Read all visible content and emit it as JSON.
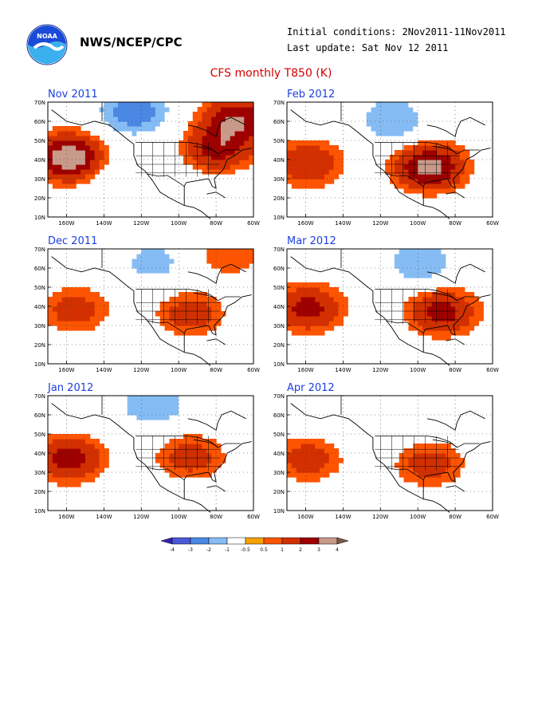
{
  "header": {
    "org": "NWS/NCEP/CPC",
    "initial_conditions": "Initial conditions: 2Nov2011-11Nov2011",
    "last_update": "Last update: Sat Nov 12 2011",
    "logo_text": "NOAA",
    "logo_icon": "noaa-logo-icon"
  },
  "title": "CFS monthly T850 (K)",
  "axes": {
    "lat_ticks": [
      "70N",
      "60N",
      "50N",
      "40N",
      "30N",
      "20N",
      "10N"
    ],
    "lon_ticks": [
      "160W",
      "140W",
      "120W",
      "100W",
      "80W",
      "60W"
    ],
    "lon_range": [
      -170,
      -60
    ],
    "lat_range": [
      10,
      70
    ]
  },
  "panels": [
    {
      "title": "Nov 2011"
    },
    {
      "title": "Feb 2012"
    },
    {
      "title": "Dec 2011"
    },
    {
      "title": "Mar 2012"
    },
    {
      "title": "Jan 2012"
    },
    {
      "title": "Apr 2012"
    }
  ],
  "colorbar": {
    "labels": [
      "-4",
      "-3",
      "-2",
      "-1",
      "-0.5",
      "0.5",
      "1",
      "2",
      "3",
      "4"
    ],
    "colors": [
      "#3a22b4",
      "#4a58d8",
      "#4a88e4",
      "#86bcf4",
      "#ffffff",
      "#f4a200",
      "#fc5400",
      "#d23000",
      "#9e0000",
      "#c89a8a",
      "#7a5a48"
    ]
  },
  "chart_data": {
    "type": "heatmap",
    "variable": "CFS monthly T850 (K)",
    "panels": [
      {
        "month": "Nov 2011",
        "anomalies": [
          {
            "lon": -160,
            "lat": 40,
            "value": 4
          },
          {
            "lon": -130,
            "lat": 30,
            "value": -1
          },
          {
            "lon": -125,
            "lat": 64,
            "value": -3
          },
          {
            "lon": -80,
            "lat": 45,
            "value": 2.5
          },
          {
            "lon": -70,
            "lat": 60,
            "value": 3
          }
        ]
      },
      {
        "month": "Feb 2012",
        "anomalies": [
          {
            "lon": -160,
            "lat": 37,
            "value": 2
          },
          {
            "lon": -95,
            "lat": 35,
            "value": 3.5
          },
          {
            "lon": -115,
            "lat": 60,
            "value": -2
          }
        ]
      },
      {
        "month": "Dec 2011",
        "anomalies": [
          {
            "lon": -157,
            "lat": 37,
            "value": 1.5
          },
          {
            "lon": -95,
            "lat": 35,
            "value": 1.5
          },
          {
            "lon": -115,
            "lat": 62,
            "value": -1.5
          },
          {
            "lon": -75,
            "lat": 66,
            "value": 1
          }
        ]
      },
      {
        "month": "Mar 2012",
        "anomalies": [
          {
            "lon": -160,
            "lat": 38,
            "value": 2.5
          },
          {
            "lon": -88,
            "lat": 36,
            "value": 2.5
          },
          {
            "lon": -100,
            "lat": 62,
            "value": -2
          }
        ]
      },
      {
        "month": "Jan 2012",
        "anomalies": [
          {
            "lon": -160,
            "lat": 36,
            "value": 2.5
          },
          {
            "lon": -95,
            "lat": 37,
            "value": 1.5
          },
          {
            "lon": -115,
            "lat": 64,
            "value": -2
          }
        ]
      },
      {
        "month": "Apr 2012",
        "anomalies": [
          {
            "lon": -160,
            "lat": 36,
            "value": 1.5
          },
          {
            "lon": -95,
            "lat": 33,
            "value": 1.5
          },
          {
            "lon": -130,
            "lat": 58,
            "value": -1
          }
        ]
      }
    ]
  }
}
